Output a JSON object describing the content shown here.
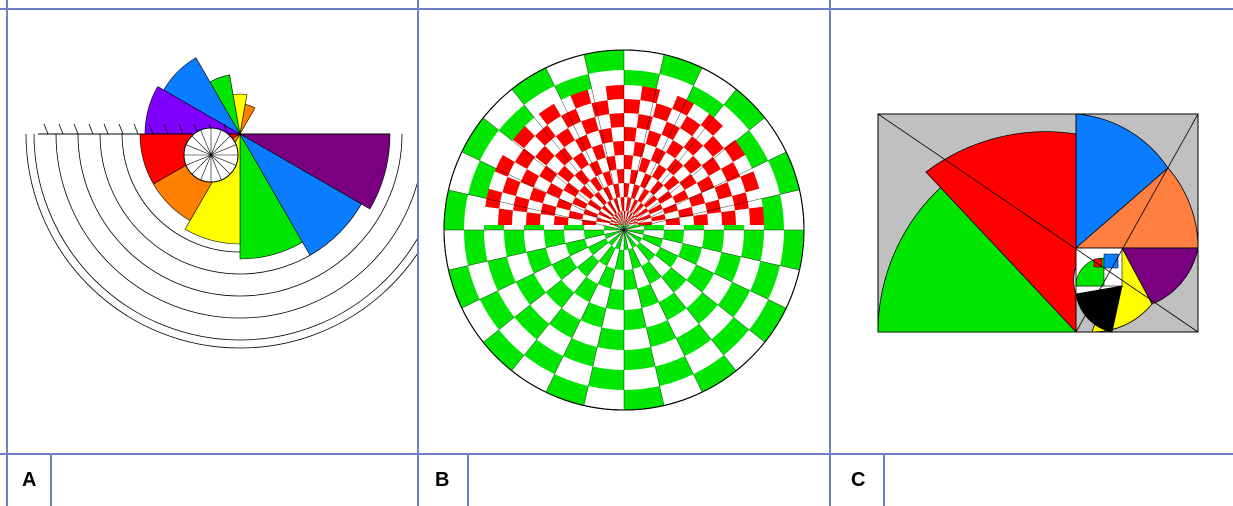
{
  "panels": [
    {
      "label": "A",
      "caption": ""
    },
    {
      "label": "B",
      "caption": ""
    },
    {
      "label": "C",
      "caption": ""
    }
  ],
  "colors": {
    "border": "#6f7fc6",
    "purple": "#7a0080",
    "blue": "#0a7cff",
    "green": "#00e600",
    "yellow": "#ffff00",
    "orange": "#ff7f00",
    "red": "#ff0000",
    "violet": "#8000ff",
    "gray": "#c0c0c0",
    "coral": "#ff7f40",
    "black": "#000000"
  }
}
